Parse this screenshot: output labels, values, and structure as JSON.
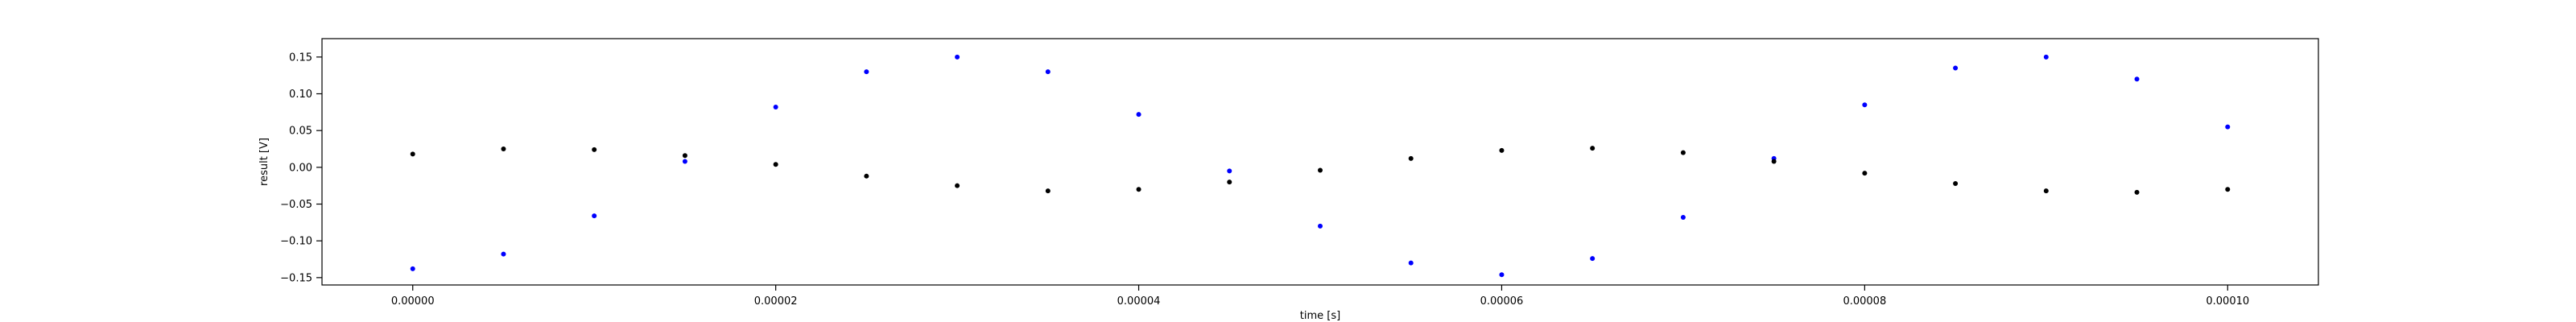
{
  "chart_data": {
    "type": "scatter",
    "xlabel": "time [s]",
    "ylabel": "result [V]",
    "xlim": [
      -5e-06,
      0.000105
    ],
    "ylim": [
      -0.16,
      0.175
    ],
    "x_ticks": [
      0.0,
      2e-05,
      4e-05,
      6e-05,
      8e-05,
      0.0001
    ],
    "x_tick_labels": [
      "0.00000",
      "0.00002",
      "0.00004",
      "0.00006",
      "0.00008",
      "0.00010"
    ],
    "y_ticks": [
      -0.15,
      -0.1,
      -0.05,
      0.0,
      0.05,
      0.1,
      0.15
    ],
    "y_tick_labels": [
      "−0.15",
      "−0.10",
      "−0.05",
      "0.00",
      "0.05",
      "0.10",
      "0.15"
    ],
    "grid": false,
    "series": [
      {
        "color": "#0000ff",
        "x": [
          0.0,
          5e-06,
          1e-05,
          1.5e-05,
          2e-05,
          2.5e-05,
          3e-05,
          3.5e-05,
          4e-05,
          4.5e-05,
          5e-05,
          5.5e-05,
          6e-05,
          6.5e-05,
          7e-05,
          7.5e-05,
          8e-05,
          8.5e-05,
          9e-05,
          9.5e-05,
          0.0001
        ],
        "y": [
          -0.138,
          -0.118,
          -0.066,
          0.008,
          0.082,
          0.13,
          0.15,
          0.13,
          0.072,
          -0.005,
          -0.08,
          -0.13,
          -0.146,
          -0.124,
          -0.068,
          0.012,
          0.085,
          0.135,
          0.15,
          0.12,
          0.055
        ]
      },
      {
        "color": "#000000",
        "x": [
          0.0,
          5e-06,
          1e-05,
          1.5e-05,
          2e-05,
          2.5e-05,
          3e-05,
          3.5e-05,
          4e-05,
          4.5e-05,
          5e-05,
          5.5e-05,
          6e-05,
          6.5e-05,
          7e-05,
          7.5e-05,
          8e-05,
          8.5e-05,
          9e-05,
          9.5e-05,
          0.0001
        ],
        "y": [
          0.018,
          0.025,
          0.024,
          0.016,
          0.004,
          -0.012,
          -0.025,
          -0.032,
          -0.03,
          -0.02,
          -0.004,
          0.012,
          0.023,
          0.026,
          0.02,
          0.008,
          -0.008,
          -0.022,
          -0.032,
          -0.034,
          -0.03
        ]
      }
    ]
  }
}
